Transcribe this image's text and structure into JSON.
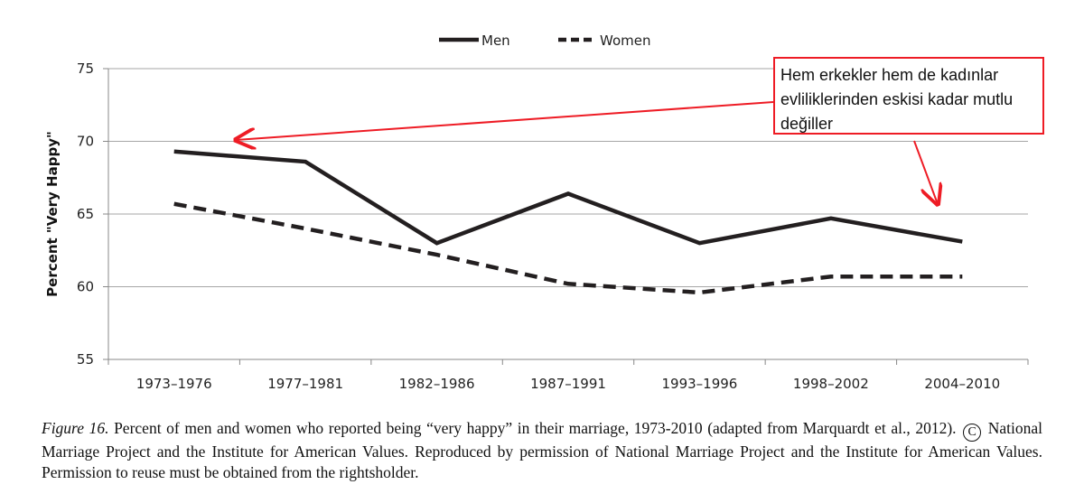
{
  "chart_data": {
    "type": "line",
    "categories": [
      "1973–1976",
      "1977–1981",
      "1982–1986",
      "1987–1991",
      "1993–1996",
      "1998–2002",
      "2004–2010"
    ],
    "series": [
      {
        "name": "Men",
        "values": [
          69.3,
          68.6,
          63.0,
          66.4,
          63.0,
          64.7,
          63.1
        ],
        "style": "solid",
        "color": "#231f20"
      },
      {
        "name": "Women",
        "values": [
          65.7,
          64.0,
          62.2,
          60.2,
          59.6,
          60.7,
          60.7
        ],
        "style": "dashed",
        "color": "#231f20"
      }
    ],
    "ylabel": "Percent \"Very Happy\"",
    "ylim": [
      55,
      75
    ],
    "yticks": [
      55,
      60,
      65,
      70,
      75
    ],
    "grid": true,
    "legend": "top-center",
    "annotation": {
      "text": "Hem erkekler hem de kadınlar evliliklerinden eskisi kadar mutlu değiller",
      "color": "#ee1c25"
    }
  },
  "caption": {
    "figure_label": "Figure 16.",
    "text_before_symbol": "Percent of men and women who reported being “very happy” in their marriage, 1973-2010 (adapted from Marquardt et al., 2012).",
    "copyright_symbol": "C",
    "text_after_symbol": "National Marriage Project and the Institute for American Values. Reproduced by permission of National Marriage Project and the Institute for American Values. Permission to reuse must be obtained from the rightsholder."
  }
}
